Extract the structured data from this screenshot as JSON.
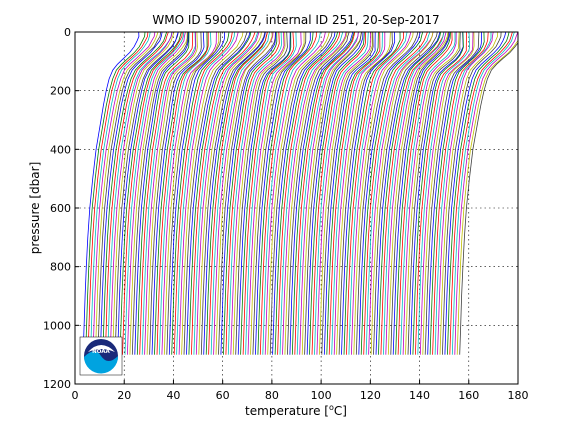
{
  "chart_data": {
    "type": "line",
    "title": "WMO ID 5900207, internal ID 251, 20-Sep-2017",
    "xlabel_pre": "temperature [",
    "xlabel_sup": "o",
    "xlabel_post": "C]",
    "ylabel": "pressure [dbar]",
    "xlim": [
      0,
      180
    ],
    "ylim": [
      0,
      1200
    ],
    "y_reversed": true,
    "grid": true,
    "grid_style": "dotted",
    "xticks": [
      0,
      20,
      40,
      60,
      80,
      100,
      120,
      140,
      160,
      180
    ],
    "yticks": [
      0,
      200,
      400,
      600,
      800,
      1000,
      1200
    ],
    "profile_count": 154,
    "profile_offset_per_profile_degC": 1,
    "pressure_levels_dbar": [
      0,
      15,
      30,
      50,
      70,
      90,
      110,
      130,
      160,
      200,
      250,
      300,
      400,
      500,
      600,
      700,
      800,
      900,
      1000,
      1100
    ],
    "base_profile_temperature_degC": [
      26.5,
      26.3,
      25.8,
      24.5,
      22.5,
      20.0,
      17.5,
      15.5,
      14.0,
      12.8,
      11.6,
      10.6,
      8.6,
      7.2,
      6.0,
      5.2,
      4.6,
      4.1,
      3.7,
      3.3
    ],
    "series_colors": [
      "#0000ff",
      "#008000",
      "#ff0000",
      "#00bfbf",
      "#bf00bf",
      "#bfbf00",
      "#404040"
    ]
  },
  "logo": {
    "text": "NOAA",
    "colors": {
      "dark": "#1a2a7a",
      "light": "#00a3e0",
      "white": "#ffffff"
    }
  }
}
